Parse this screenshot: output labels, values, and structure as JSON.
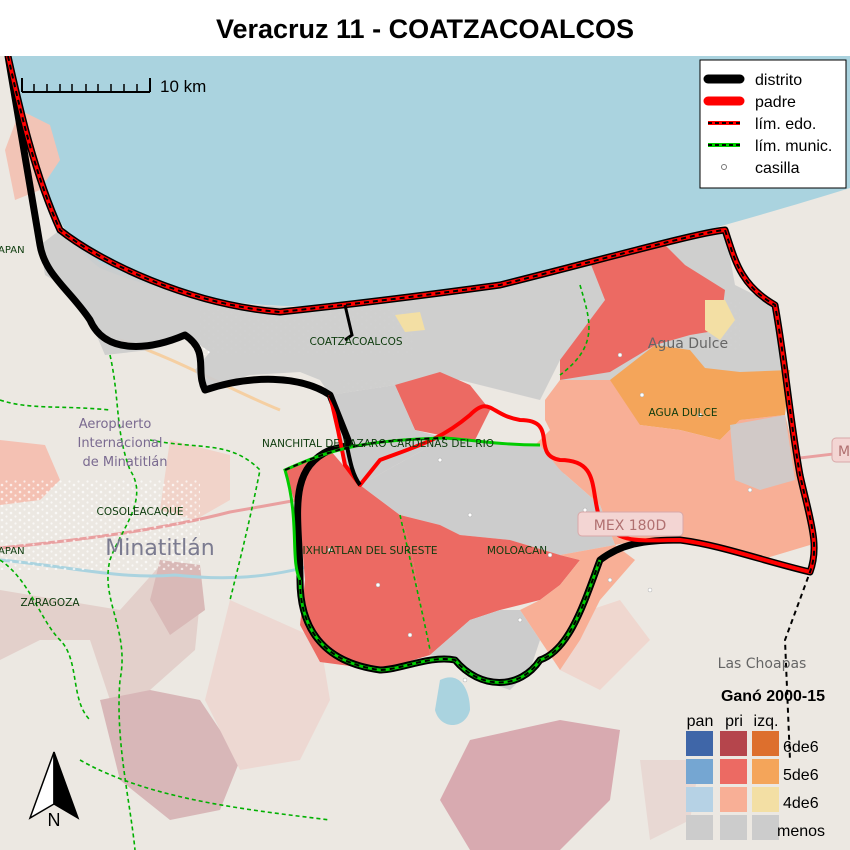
{
  "title": "Veracruz 11 - COATZACOALCOS",
  "scale_bar": {
    "label": "10 km"
  },
  "north_arrow": {
    "label": "N",
    "icon": "north-arrow-icon"
  },
  "legend": [
    {
      "label": "distrito",
      "color": "#000000",
      "style": "thick-solid"
    },
    {
      "label": "padre",
      "color": "#ff0000",
      "style": "thick-solid"
    },
    {
      "label": "lím. edo.",
      "color": "#ff0000",
      "style": "dashed-black"
    },
    {
      "label": "lím. munic.",
      "color": "#00cc00",
      "style": "dashed-black"
    },
    {
      "label": "casilla",
      "color": "#ffffff",
      "style": "point"
    }
  ],
  "win_legend": {
    "title": "Ganó 2000-15",
    "columns": [
      "pan",
      "pri",
      "izq."
    ],
    "rows": [
      {
        "label": "6de6",
        "colors": [
          "#3f66a8",
          "#b5454c",
          "#dd6f2d"
        ]
      },
      {
        "label": "5de6",
        "colors": [
          "#75a6d2",
          "#ec6a63",
          "#f4a55a"
        ]
      },
      {
        "label": "4de6",
        "colors": [
          "#b6d2e5",
          "#f8af96",
          "#f3dfa4"
        ]
      },
      {
        "label": "menos",
        "colors": [
          "#cccccc",
          "#cccccc",
          "#cccccc"
        ]
      }
    ]
  },
  "municipalities": [
    {
      "name": "COATZACOALCOS"
    },
    {
      "name": "AGUA DULCE"
    },
    {
      "name": "NANCHITAL DE LAZARO CARDENAS DEL RIO"
    },
    {
      "name": "COSOLEACAQUE"
    },
    {
      "name": "IXHUATLAN DEL SURESTE"
    },
    {
      "name": "MOLOACAN"
    },
    {
      "name": "ZARAGOZA"
    }
  ],
  "basemap_labels": {
    "airport": [
      "Aeropuerto",
      "Internacional",
      "de Minatitlán"
    ],
    "minatitlan": "Minatitlán",
    "agua_dulce": "Agua Dulce",
    "las_choapas": "Las Choapas",
    "highway": "MEX 180D",
    "highway_right": "M",
    "edge_left_1": "APAN",
    "edge_left_2": "APAN"
  }
}
